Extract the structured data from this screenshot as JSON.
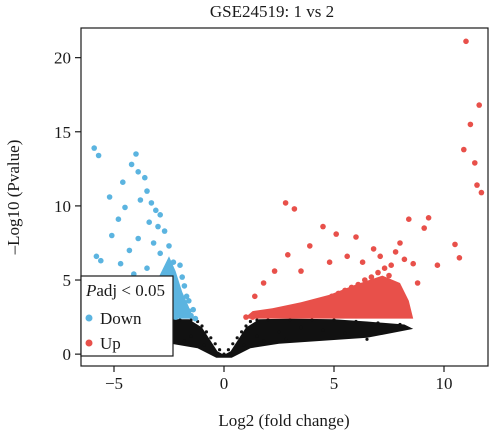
{
  "chart_data": {
    "type": "scatter",
    "title": "GSE24519: 1 vs 2",
    "xlabel": "Log2 (fold change)",
    "ylabel": "–Log10 (Pvalue)",
    "xlim": [
      -6.5,
      12
    ],
    "ylim": [
      -0.8,
      22
    ],
    "xticks": [
      -5,
      0,
      5,
      10
    ],
    "yticks": [
      0,
      5,
      10,
      15,
      20
    ],
    "xtick_labels": [
      "−5",
      "0",
      "5",
      "10"
    ],
    "ytick_labels": [
      "0",
      "5",
      "10",
      "15",
      "20"
    ],
    "legend": {
      "title_italic": "P",
      "title_rest": "adj < 0.05",
      "placement": "bottom-left",
      "entries": [
        {
          "label": "Down",
          "color": "#5bb4e0"
        },
        {
          "label": "Up",
          "color": "#e8504a"
        }
      ]
    },
    "colors": {
      "down": "#5bb4e0",
      "up": "#e8504a",
      "ns": "#111111"
    },
    "series": [
      {
        "name": "Down",
        "color": "#5bb4e0",
        "points": [
          [
            -5.9,
            13.9
          ],
          [
            -5.7,
            13.4
          ],
          [
            -4.0,
            13.5
          ],
          [
            -4.2,
            12.8
          ],
          [
            -3.9,
            12.3
          ],
          [
            -3.6,
            11.9
          ],
          [
            -4.6,
            11.6
          ],
          [
            -3.5,
            11.0
          ],
          [
            -5.2,
            10.6
          ],
          [
            -3.8,
            10.4
          ],
          [
            -3.3,
            10.2
          ],
          [
            -4.5,
            9.9
          ],
          [
            -3.1,
            9.7
          ],
          [
            -2.9,
            9.4
          ],
          [
            -4.8,
            9.1
          ],
          [
            -3.4,
            8.9
          ],
          [
            -3.0,
            8.6
          ],
          [
            -2.7,
            8.3
          ],
          [
            -5.1,
            8.0
          ],
          [
            -3.9,
            7.8
          ],
          [
            -3.2,
            7.5
          ],
          [
            -2.5,
            7.3
          ],
          [
            -4.3,
            7.0
          ],
          [
            -2.9,
            6.8
          ],
          [
            -5.8,
            6.6
          ],
          [
            -5.6,
            6.3
          ],
          [
            -4.7,
            6.1
          ],
          [
            -3.5,
            5.8
          ],
          [
            -2.4,
            5.7
          ],
          [
            -4.1,
            5.4
          ],
          [
            -2.8,
            5.1
          ],
          [
            -3.3,
            4.9
          ],
          [
            -2.2,
            4.7
          ],
          [
            -4.9,
            4.5
          ],
          [
            -3.7,
            4.3
          ],
          [
            -2.6,
            4.0
          ],
          [
            -2.0,
            3.8
          ],
          [
            -3.1,
            3.6
          ],
          [
            -1.8,
            3.4
          ],
          [
            -2.4,
            3.1
          ],
          [
            -1.6,
            2.9
          ],
          [
            -2.9,
            2.8
          ],
          [
            -1.5,
            2.6
          ],
          [
            -2.2,
            2.5
          ],
          [
            -1.3,
            2.4
          ],
          [
            -3.8,
            4.2
          ],
          [
            -4.4,
            3.7
          ],
          [
            -5.0,
            4.8
          ],
          [
            -2.3,
            6.2
          ],
          [
            -1.9,
            5.2
          ],
          [
            -2.1,
            4.3
          ],
          [
            -1.7,
            3.9
          ],
          [
            -1.4,
            3.0
          ],
          [
            -2.6,
            5.5
          ],
          [
            -2.0,
            6.0
          ],
          [
            -1.8,
            4.6
          ],
          [
            -2.5,
            3.3
          ],
          [
            -3.4,
            3.9
          ],
          [
            -1.6,
            3.6
          ],
          [
            -2.7,
            4.4
          ]
        ]
      },
      {
        "name": "Up",
        "color": "#e8504a",
        "points": [
          [
            11.0,
            21.1
          ],
          [
            11.6,
            16.8
          ],
          [
            11.2,
            15.5
          ],
          [
            10.9,
            13.8
          ],
          [
            11.4,
            12.9
          ],
          [
            11.5,
            11.4
          ],
          [
            11.7,
            10.9
          ],
          [
            10.5,
            7.4
          ],
          [
            10.7,
            6.5
          ],
          [
            9.3,
            9.2
          ],
          [
            9.1,
            8.5
          ],
          [
            8.4,
            9.1
          ],
          [
            8.0,
            7.5
          ],
          [
            7.8,
            6.9
          ],
          [
            8.2,
            6.4
          ],
          [
            7.6,
            6.0
          ],
          [
            7.3,
            5.8
          ],
          [
            7.0,
            5.5
          ],
          [
            6.7,
            5.2
          ],
          [
            6.4,
            5.0
          ],
          [
            6.1,
            4.7
          ],
          [
            5.8,
            4.5
          ],
          [
            5.5,
            4.3
          ],
          [
            5.2,
            4.1
          ],
          [
            4.9,
            3.9
          ],
          [
            4.6,
            3.7
          ],
          [
            4.3,
            3.5
          ],
          [
            4.0,
            3.4
          ],
          [
            3.7,
            3.2
          ],
          [
            3.4,
            3.1
          ],
          [
            3.1,
            3.0
          ],
          [
            2.8,
            2.9
          ],
          [
            2.5,
            2.8
          ],
          [
            2.2,
            2.7
          ],
          [
            1.9,
            2.6
          ],
          [
            1.6,
            2.6
          ],
          [
            1.3,
            2.5
          ],
          [
            1.0,
            2.5
          ],
          [
            2.8,
            10.2
          ],
          [
            3.2,
            9.8
          ],
          [
            4.5,
            8.6
          ],
          [
            5.1,
            8.1
          ],
          [
            6.0,
            7.9
          ],
          [
            6.8,
            7.1
          ],
          [
            3.9,
            7.3
          ],
          [
            2.9,
            6.7
          ],
          [
            2.3,
            5.6
          ],
          [
            1.8,
            4.8
          ],
          [
            1.4,
            3.9
          ],
          [
            3.5,
            5.6
          ],
          [
            4.8,
            6.2
          ],
          [
            5.6,
            6.6
          ],
          [
            6.3,
            6.2
          ],
          [
            7.1,
            6.6
          ],
          [
            7.5,
            5.3
          ],
          [
            8.6,
            6.1
          ],
          [
            9.7,
            6.0
          ],
          [
            8.8,
            4.8
          ],
          [
            6.6,
            4.3
          ],
          [
            5.9,
            3.8
          ]
        ]
      },
      {
        "name": "",
        "color": "#111111",
        "points": [
          [
            0.0,
            0.0
          ],
          [
            -0.2,
            0.3
          ],
          [
            0.2,
            0.3
          ],
          [
            -0.4,
            0.7
          ],
          [
            0.4,
            0.7
          ],
          [
            -0.6,
            1.1
          ],
          [
            0.6,
            1.1
          ],
          [
            -0.8,
            1.5
          ],
          [
            0.8,
            1.5
          ],
          [
            -1.0,
            1.9
          ],
          [
            1.0,
            1.9
          ],
          [
            -1.2,
            2.2
          ],
          [
            1.2,
            2.2
          ],
          [
            -1.5,
            2.3
          ],
          [
            1.5,
            2.3
          ],
          [
            -2.0,
            2.3
          ],
          [
            2.0,
            2.3
          ],
          [
            -3.0,
            2.3
          ],
          [
            3.0,
            2.3
          ],
          [
            -4.0,
            2.2
          ],
          [
            4.0,
            2.3
          ],
          [
            5.0,
            2.3
          ],
          [
            6.0,
            2.2
          ],
          [
            7.0,
            2.1
          ],
          [
            8.0,
            2.0
          ],
          [
            -1.5,
            1.2
          ],
          [
            1.5,
            1.2
          ],
          [
            -2.5,
            1.5
          ],
          [
            2.5,
            1.5
          ],
          [
            -3.5,
            1.8
          ],
          [
            3.5,
            1.8
          ],
          [
            4.5,
            1.6
          ],
          [
            5.5,
            1.4
          ],
          [
            6.5,
            1.0
          ],
          [
            -0.9,
            0.6
          ],
          [
            0.9,
            0.6
          ],
          [
            -1.8,
            0.9
          ],
          [
            1.8,
            0.9
          ],
          [
            -2.8,
            1.0
          ],
          [
            2.8,
            1.0
          ]
        ]
      }
    ]
  }
}
